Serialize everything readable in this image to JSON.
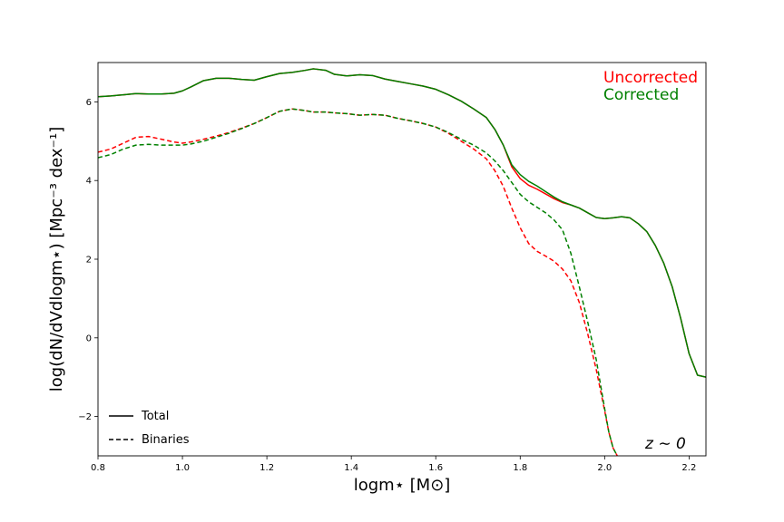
{
  "chart_data": {
    "type": "line",
    "xlabel": "logm⋆ [M⊙]",
    "ylabel": "log(dN/dVdlogm⋆) [Mpc⁻³ dex⁻¹]",
    "xlim": [
      0.8,
      2.24
    ],
    "ylim": [
      -3.0,
      7.0
    ],
    "xticks": [
      0.8,
      1.0,
      1.2,
      1.4,
      1.6,
      1.8,
      2.0,
      2.2
    ],
    "xtick_labels": [
      "0.8",
      "1.0",
      "1.2",
      "1.4",
      "1.6",
      "1.8",
      "2.0",
      "2.2"
    ],
    "yticks": [
      -2,
      0,
      2,
      4,
      6
    ],
    "ytick_labels": [
      "−2",
      "0",
      "2",
      "4",
      "6"
    ],
    "grid": false,
    "legend": {
      "placement": "lower-left",
      "entries": [
        {
          "label": "Total",
          "style": "solid"
        },
        {
          "label": "Binaries",
          "style": "dashed"
        }
      ]
    },
    "series_labels": [
      {
        "text": "Uncorrected",
        "color": "#ff0000"
      },
      {
        "text": "Corrected",
        "color": "#008000"
      }
    ],
    "annotation": "z ∼ 0",
    "series": [
      {
        "label": "Uncorrected",
        "color": "#ff0000",
        "style": "solid",
        "x": [
          0.8,
          0.83,
          0.86,
          0.89,
          0.92,
          0.95,
          0.98,
          1.0,
          1.02,
          1.05,
          1.08,
          1.11,
          1.14,
          1.17,
          1.2,
          1.23,
          1.26,
          1.29,
          1.31,
          1.34,
          1.36,
          1.39,
          1.42,
          1.45,
          1.48,
          1.51,
          1.54,
          1.57,
          1.6,
          1.63,
          1.66,
          1.69,
          1.72,
          1.74,
          1.76,
          1.78,
          1.8,
          1.82,
          1.84,
          1.86,
          1.88,
          1.9,
          1.92,
          1.94,
          1.96,
          1.98,
          2.0,
          2.02,
          2.04,
          2.06,
          2.08,
          2.1,
          2.12,
          2.14,
          2.16,
          2.18,
          2.2,
          2.22,
          2.24
        ],
        "y": [
          6.13,
          6.15,
          6.18,
          6.21,
          6.2,
          6.2,
          6.22,
          6.28,
          6.38,
          6.54,
          6.6,
          6.6,
          6.57,
          6.55,
          6.64,
          6.72,
          6.75,
          6.8,
          6.84,
          6.8,
          6.7,
          6.66,
          6.69,
          6.67,
          6.58,
          6.52,
          6.46,
          6.4,
          6.32,
          6.18,
          6.02,
          5.82,
          5.6,
          5.3,
          4.9,
          4.35,
          4.05,
          3.88,
          3.78,
          3.66,
          3.54,
          3.44,
          3.38,
          3.3,
          3.18,
          3.06,
          3.03,
          3.05,
          3.08,
          3.05,
          2.9,
          2.7,
          2.35,
          1.9,
          1.3,
          0.5,
          -0.4,
          -0.95,
          -1.0
        ]
      },
      {
        "label": "Corrected",
        "color": "#008000",
        "style": "solid",
        "x": [
          0.8,
          0.83,
          0.86,
          0.89,
          0.92,
          0.95,
          0.98,
          1.0,
          1.02,
          1.05,
          1.08,
          1.11,
          1.14,
          1.17,
          1.2,
          1.23,
          1.26,
          1.29,
          1.31,
          1.34,
          1.36,
          1.39,
          1.42,
          1.45,
          1.48,
          1.51,
          1.54,
          1.57,
          1.6,
          1.63,
          1.66,
          1.69,
          1.72,
          1.74,
          1.76,
          1.78,
          1.8,
          1.82,
          1.84,
          1.86,
          1.88,
          1.9,
          1.92,
          1.94,
          1.96,
          1.98,
          2.0,
          2.02,
          2.04,
          2.06,
          2.08,
          2.1,
          2.12,
          2.14,
          2.16,
          2.18,
          2.2,
          2.22,
          2.24
        ],
        "y": [
          6.13,
          6.15,
          6.18,
          6.21,
          6.2,
          6.2,
          6.22,
          6.28,
          6.38,
          6.54,
          6.6,
          6.6,
          6.57,
          6.55,
          6.64,
          6.72,
          6.75,
          6.8,
          6.84,
          6.8,
          6.7,
          6.66,
          6.69,
          6.67,
          6.58,
          6.52,
          6.46,
          6.4,
          6.32,
          6.18,
          6.02,
          5.82,
          5.6,
          5.3,
          4.9,
          4.4,
          4.15,
          3.98,
          3.86,
          3.72,
          3.58,
          3.46,
          3.38,
          3.3,
          3.18,
          3.06,
          3.03,
          3.05,
          3.08,
          3.05,
          2.9,
          2.7,
          2.35,
          1.9,
          1.3,
          0.5,
          -0.4,
          -0.95,
          -1.0
        ]
      },
      {
        "label": "Uncorrected",
        "color": "#ff0000",
        "style": "dashed",
        "x": [
          0.8,
          0.83,
          0.86,
          0.89,
          0.92,
          0.95,
          0.98,
          1.0,
          1.02,
          1.05,
          1.08,
          1.11,
          1.14,
          1.17,
          1.2,
          1.23,
          1.26,
          1.29,
          1.31,
          1.34,
          1.36,
          1.39,
          1.42,
          1.45,
          1.48,
          1.51,
          1.54,
          1.57,
          1.6,
          1.63,
          1.66,
          1.69,
          1.72,
          1.74,
          1.76,
          1.78,
          1.8,
          1.82,
          1.84,
          1.86,
          1.88,
          1.9,
          1.92,
          1.94,
          1.96,
          1.98,
          2.0,
          2.01,
          2.02,
          2.03
        ],
        "y": [
          4.72,
          4.8,
          4.95,
          5.1,
          5.12,
          5.05,
          4.98,
          4.95,
          4.98,
          5.05,
          5.13,
          5.22,
          5.33,
          5.45,
          5.6,
          5.76,
          5.82,
          5.78,
          5.74,
          5.74,
          5.72,
          5.7,
          5.66,
          5.68,
          5.66,
          5.58,
          5.52,
          5.45,
          5.36,
          5.2,
          5.0,
          4.8,
          4.55,
          4.25,
          3.85,
          3.3,
          2.8,
          2.4,
          2.2,
          2.08,
          1.95,
          1.75,
          1.45,
          0.9,
          0.1,
          -0.8,
          -1.85,
          -2.4,
          -2.8,
          -3.0
        ]
      },
      {
        "label": "Corrected",
        "color": "#008000",
        "style": "dashed",
        "x": [
          0.8,
          0.83,
          0.86,
          0.89,
          0.92,
          0.95,
          0.98,
          1.0,
          1.02,
          1.05,
          1.08,
          1.11,
          1.14,
          1.17,
          1.2,
          1.23,
          1.26,
          1.29,
          1.31,
          1.34,
          1.36,
          1.39,
          1.42,
          1.45,
          1.48,
          1.51,
          1.54,
          1.57,
          1.6,
          1.63,
          1.66,
          1.69,
          1.72,
          1.74,
          1.76,
          1.78,
          1.8,
          1.82,
          1.84,
          1.86,
          1.88,
          1.9,
          1.92,
          1.94,
          1.96,
          1.98,
          2.0,
          2.01,
          2.02,
          2.03
        ],
        "y": [
          4.58,
          4.66,
          4.8,
          4.9,
          4.92,
          4.9,
          4.9,
          4.9,
          4.93,
          5.0,
          5.1,
          5.2,
          5.32,
          5.45,
          5.6,
          5.76,
          5.82,
          5.78,
          5.74,
          5.74,
          5.72,
          5.7,
          5.66,
          5.68,
          5.66,
          5.58,
          5.52,
          5.45,
          5.36,
          5.22,
          5.05,
          4.9,
          4.7,
          4.5,
          4.25,
          3.95,
          3.65,
          3.46,
          3.32,
          3.18,
          3.0,
          2.75,
          2.15,
          1.3,
          0.4,
          -0.55,
          -1.8,
          -2.4,
          -2.8,
          -3.0
        ]
      }
    ]
  }
}
